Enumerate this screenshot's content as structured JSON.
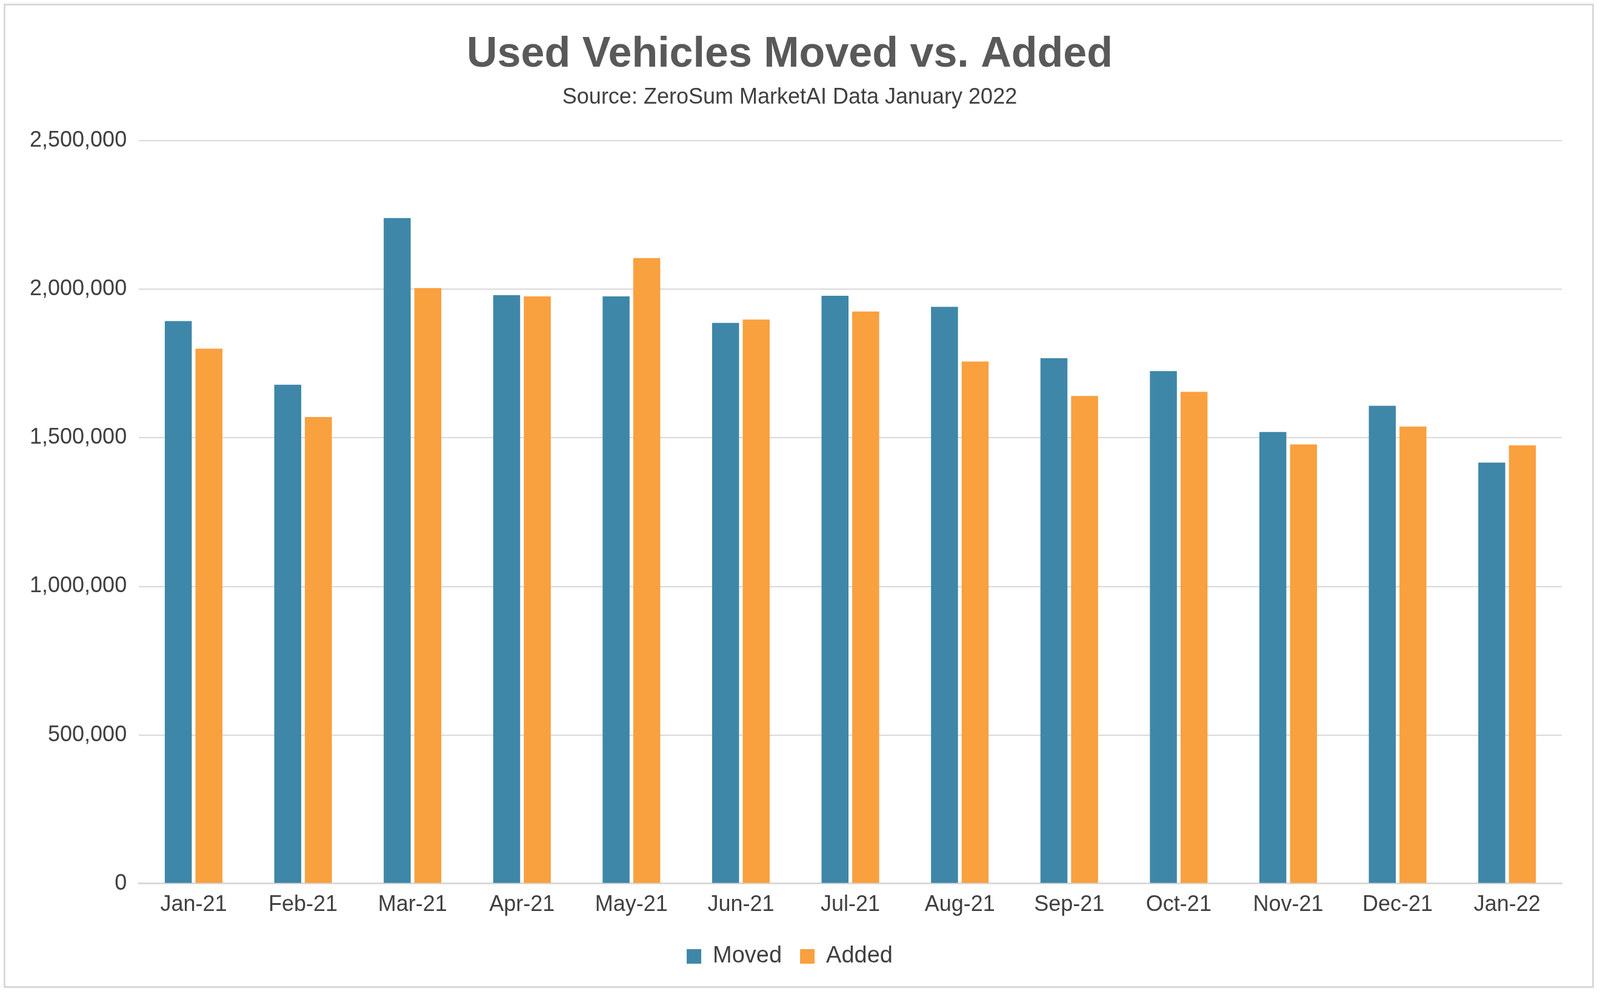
{
  "chart_data": {
    "type": "bar",
    "title": "Used Vehicles Moved vs. Added",
    "subtitle": "Source: ZeroSum MarketAI Data January 2022",
    "categories": [
      "Jan-21",
      "Feb-21",
      "Mar-21",
      "Apr-21",
      "May-21",
      "Jun-21",
      "Jul-21",
      "Aug-21",
      "Sep-21",
      "Oct-21",
      "Nov-21",
      "Dec-21",
      "Jan-22"
    ],
    "series": [
      {
        "name": "Moved",
        "color": "#3e87a8",
        "values": [
          1893000,
          1679000,
          2240000,
          1980000,
          1976000,
          1887000,
          1978000,
          1941000,
          1768000,
          1725000,
          1520000,
          1608000,
          1417000
        ]
      },
      {
        "name": "Added",
        "color": "#f9a03f",
        "values": [
          1800000,
          1570000,
          2004000,
          1976000,
          2105000,
          1898000,
          1925000,
          1757000,
          1641000,
          1655000,
          1478000,
          1538000,
          1475000
        ]
      }
    ],
    "ylim": [
      0,
      2500000
    ],
    "yticks": [
      0,
      {
        "value": 500000,
        "label": "500,000"
      },
      {
        "value": 1000000,
        "label": "1,000,000"
      },
      {
        "value": 1500000,
        "label": "1,500,000"
      },
      {
        "value": 2000000,
        "label": "2,000,000"
      },
      {
        "value": 2500000,
        "label": "2,500,000"
      }
    ],
    "grid": true,
    "legend": "bottom"
  }
}
